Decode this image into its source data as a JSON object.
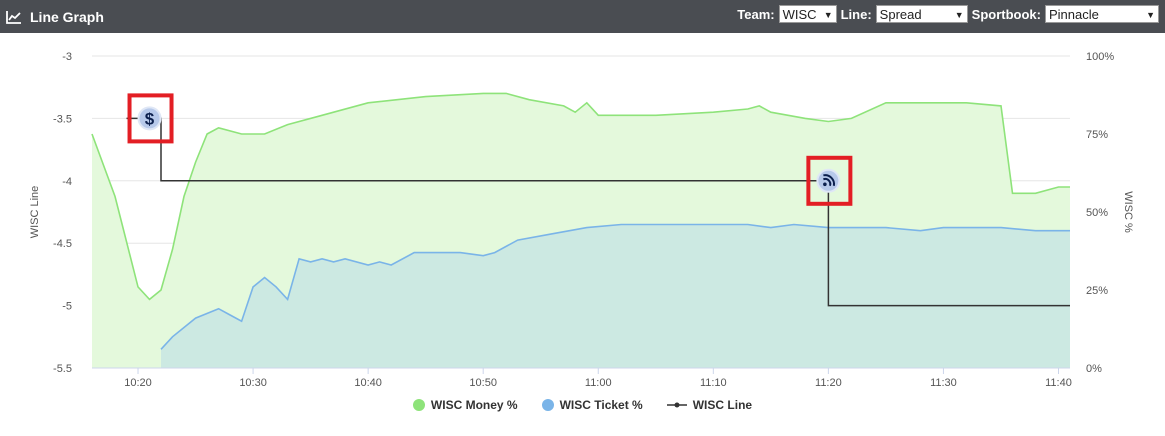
{
  "header": {
    "title": "Line Graph",
    "icon": "line-chart-icon",
    "team_label": "Team:",
    "team_value": "WISC",
    "line_label": "Line:",
    "line_value": "Spread",
    "book_label": "Sportbook:",
    "book_value": "Pinnacle"
  },
  "colors": {
    "header_bg": "#4a4d52",
    "money": "#8ee37a",
    "money_fill": "#e4f9dc",
    "ticket": "#7ab4e8",
    "ticket_fill": "#cce9e2",
    "line": "#333333",
    "highlight": "#e31e24"
  },
  "chart_data": {
    "type": "line",
    "ylabel_left": "WISC Line",
    "ylabel_right": "WISC %",
    "x_ticks": [
      "10:20",
      "10:30",
      "10:40",
      "10:50",
      "11:00",
      "11:10",
      "11:20",
      "11:30",
      "11:40"
    ],
    "x_range": [
      "10:16",
      "11:41"
    ],
    "y_left_ticks": [
      "-3",
      "-3.5",
      "-4",
      "-4.5",
      "-5",
      "-5.5"
    ],
    "y_left_range": [
      -5.5,
      -3
    ],
    "y_right_ticks": [
      "100%",
      "75%",
      "50%",
      "25%",
      "0%"
    ],
    "y_right_range": [
      0,
      100
    ],
    "series": [
      {
        "name": "WISC Money %",
        "axis": "right",
        "points": [
          [
            "10:16",
            75
          ],
          [
            "10:18",
            55
          ],
          [
            "10:20",
            26
          ],
          [
            "10:21",
            22
          ],
          [
            "10:22",
            25
          ],
          [
            "10:23",
            38
          ],
          [
            "10:24",
            55
          ],
          [
            "10:25",
            66
          ],
          [
            "10:26",
            75
          ],
          [
            "10:27",
            77
          ],
          [
            "10:29",
            75
          ],
          [
            "10:31",
            75
          ],
          [
            "10:33",
            78
          ],
          [
            "10:36",
            81
          ],
          [
            "10:40",
            85
          ],
          [
            "10:45",
            87
          ],
          [
            "10:50",
            88
          ],
          [
            "10:52",
            88
          ],
          [
            "10:54",
            86
          ],
          [
            "10:57",
            84
          ],
          [
            "10:58",
            82
          ],
          [
            "10:59",
            85
          ],
          [
            "11:00",
            81
          ],
          [
            "11:05",
            81
          ],
          [
            "11:10",
            82
          ],
          [
            "11:13",
            83
          ],
          [
            "11:14",
            84
          ],
          [
            "11:15",
            82
          ],
          [
            "11:18",
            80
          ],
          [
            "11:20",
            79
          ],
          [
            "11:22",
            80
          ],
          [
            "11:25",
            85
          ],
          [
            "11:27",
            85
          ],
          [
            "11:30",
            85
          ],
          [
            "11:32",
            85
          ],
          [
            "11:35",
            84
          ],
          [
            "11:36",
            56
          ],
          [
            "11:38",
            56
          ],
          [
            "11:40",
            58
          ],
          [
            "11:41",
            58
          ]
        ]
      },
      {
        "name": "WISC Ticket %",
        "axis": "right",
        "points": [
          [
            "10:22",
            6
          ],
          [
            "10:23",
            10
          ],
          [
            "10:25",
            16
          ],
          [
            "10:27",
            19
          ],
          [
            "10:28",
            17
          ],
          [
            "10:29",
            15
          ],
          [
            "10:30",
            26
          ],
          [
            "10:31",
            29
          ],
          [
            "10:32",
            26
          ],
          [
            "10:33",
            22
          ],
          [
            "10:34",
            35
          ],
          [
            "10:35",
            34
          ],
          [
            "10:36",
            35
          ],
          [
            "10:37",
            34
          ],
          [
            "10:38",
            35
          ],
          [
            "10:40",
            33
          ],
          [
            "10:41",
            34
          ],
          [
            "10:42",
            33
          ],
          [
            "10:44",
            37
          ],
          [
            "10:48",
            37
          ],
          [
            "10:50",
            36
          ],
          [
            "10:51",
            37
          ],
          [
            "10:53",
            41
          ],
          [
            "10:56",
            43
          ],
          [
            "10:59",
            45
          ],
          [
            "11:02",
            46
          ],
          [
            "11:05",
            46
          ],
          [
            "11:08",
            46
          ],
          [
            "11:10",
            46
          ],
          [
            "11:13",
            46
          ],
          [
            "11:15",
            45
          ],
          [
            "11:17",
            46
          ],
          [
            "11:20",
            45
          ],
          [
            "11:22",
            45
          ],
          [
            "11:25",
            45
          ],
          [
            "11:28",
            44
          ],
          [
            "11:30",
            45
          ],
          [
            "11:33",
            45
          ],
          [
            "11:35",
            45
          ],
          [
            "11:38",
            44
          ],
          [
            "11:41",
            44
          ]
        ]
      },
      {
        "name": "WISC Line",
        "axis": "left",
        "step": true,
        "points": [
          [
            "10:19",
            -3.5
          ],
          [
            "10:22",
            -3.5
          ],
          [
            "10:22",
            -4
          ],
          [
            "11:20",
            -4
          ],
          [
            "11:20",
            -5
          ],
          [
            "11:41",
            -5
          ]
        ]
      }
    ],
    "annotations": [
      {
        "time": "10:21",
        "value": -3.5,
        "icon": "dollar-icon",
        "symbol": "$"
      },
      {
        "time": "11:20",
        "value": -4,
        "icon": "rss-icon",
        "symbol": "rss"
      }
    ],
    "grid": true,
    "legend_position": "bottom"
  }
}
